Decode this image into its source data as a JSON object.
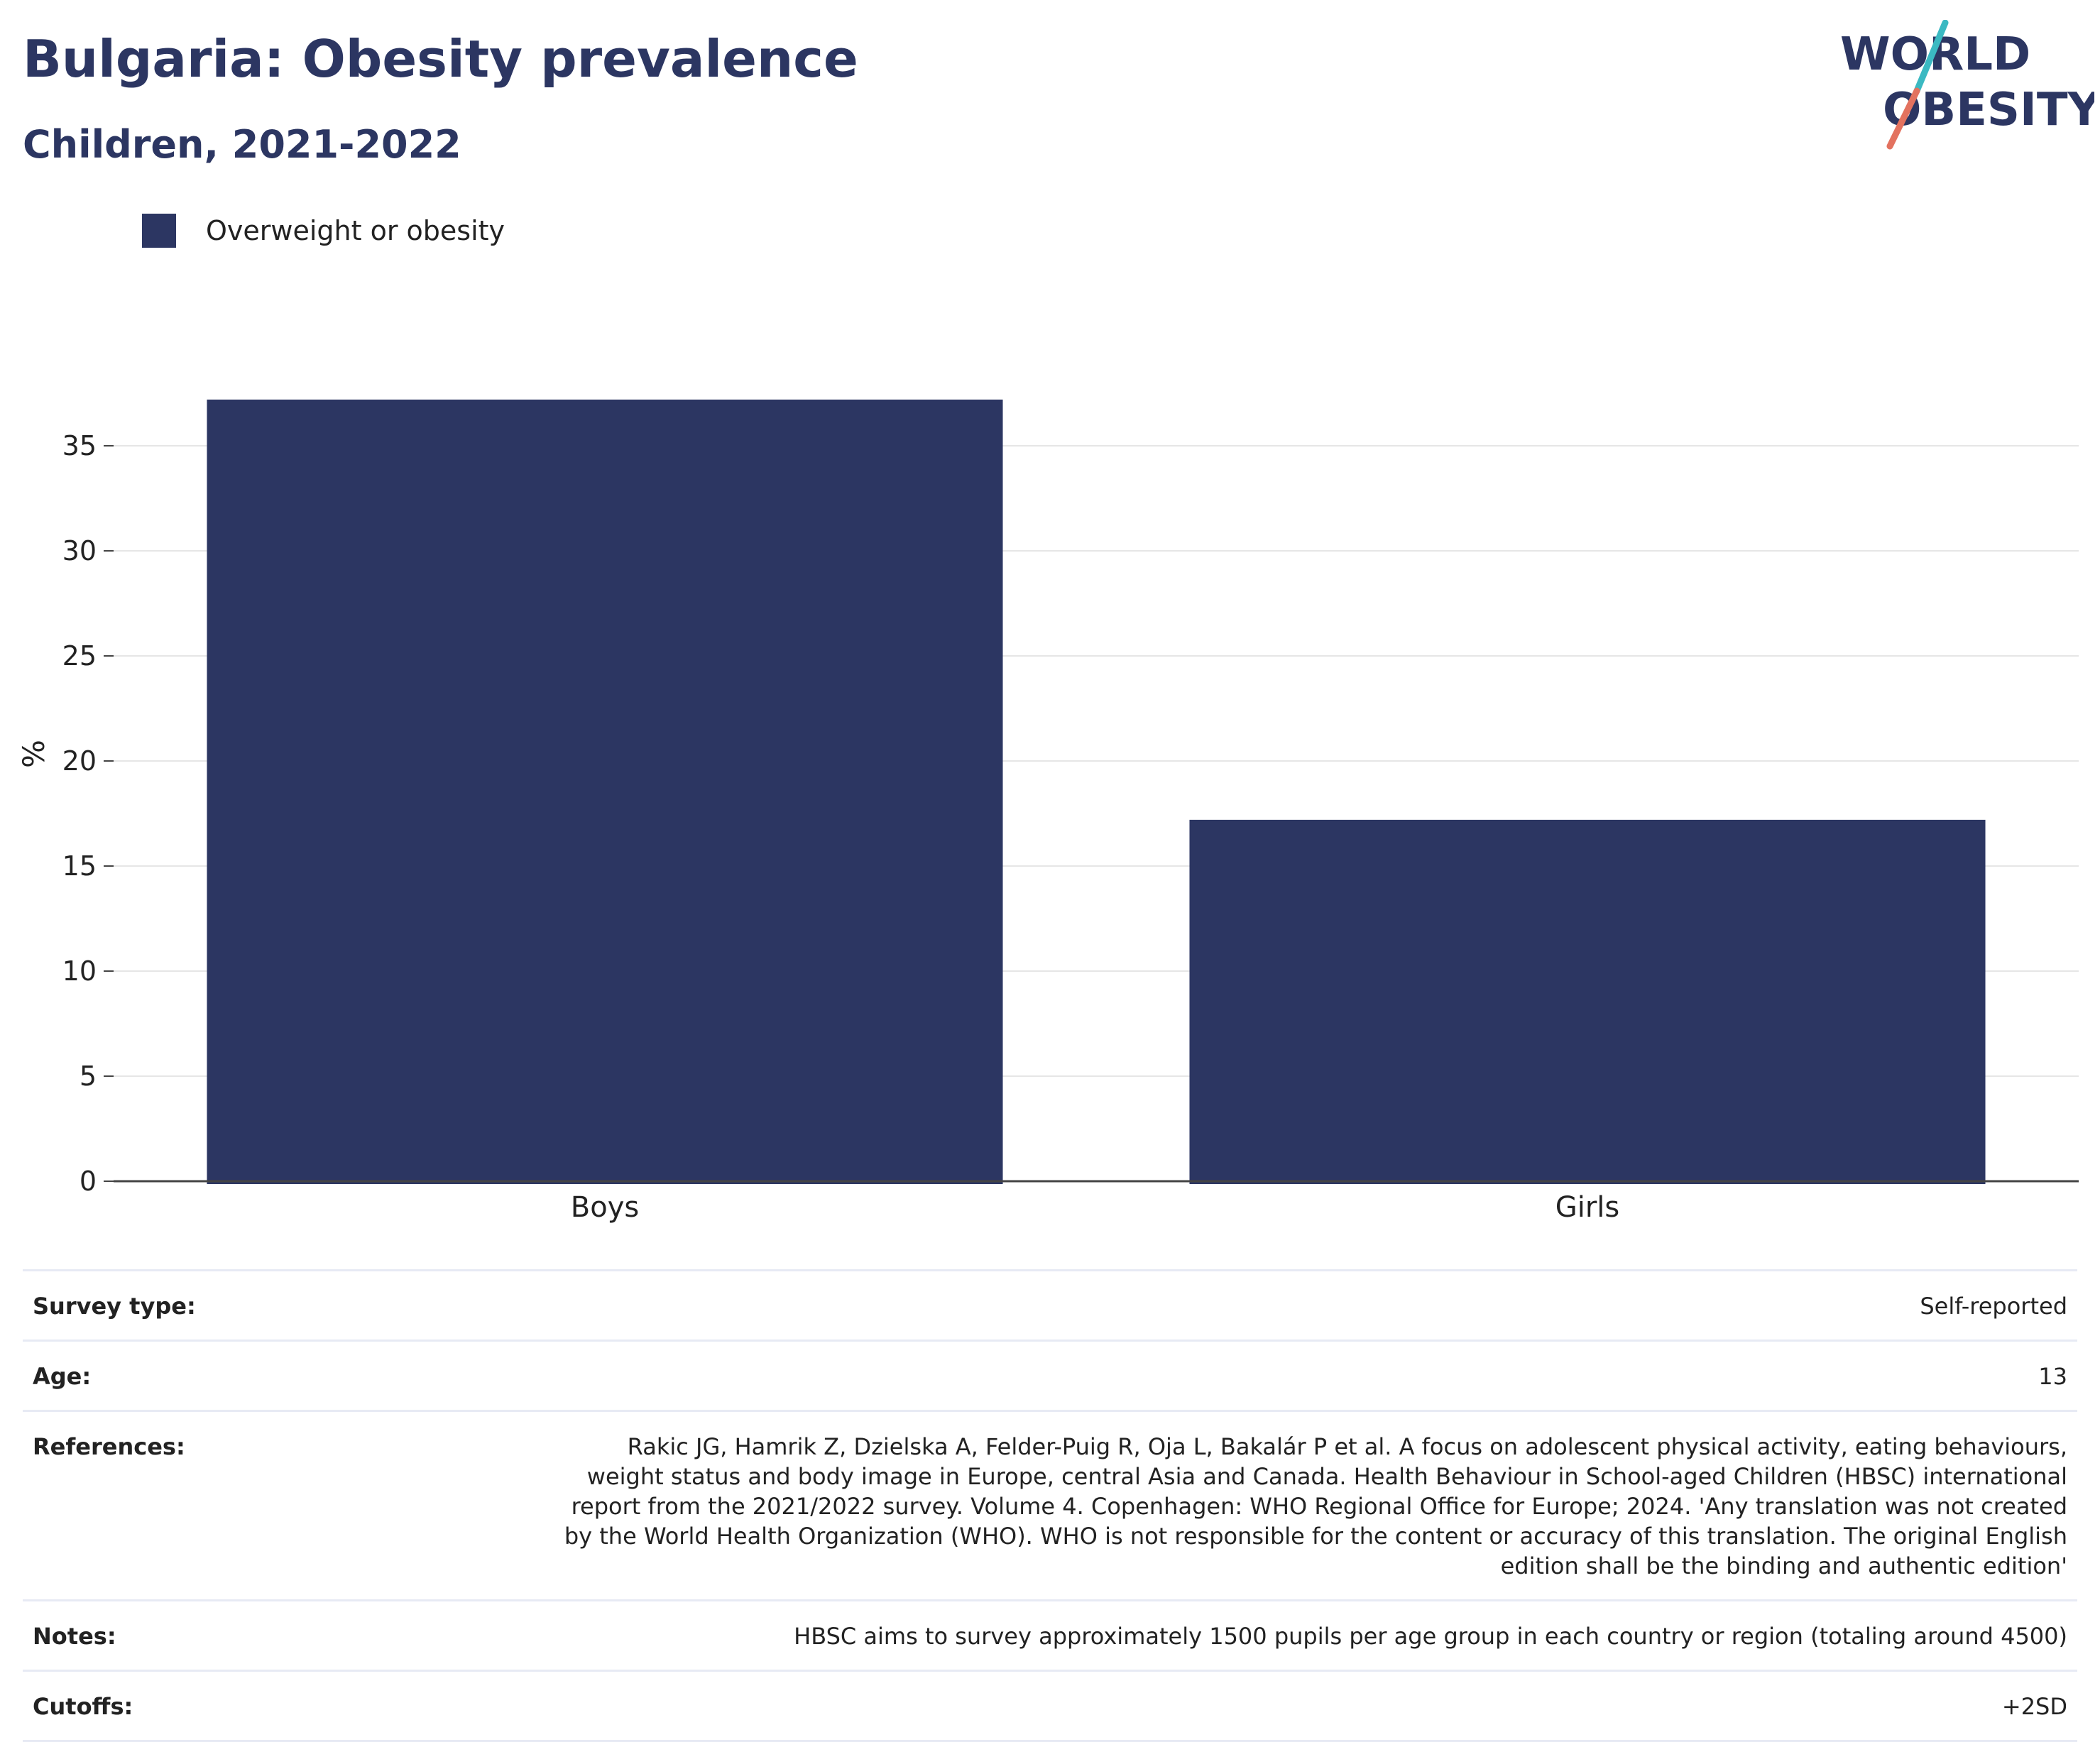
{
  "header": {
    "title": "Bulgaria: Obesity prevalence",
    "subtitle": "Children, 2021-2022"
  },
  "logo": {
    "line1": "WORLD",
    "line2": "OBESITY",
    "text_color": "#2c3662",
    "slash_top_color": "#3bb9c2",
    "slash_bottom_color": "#e3725f"
  },
  "chart_data": {
    "type": "bar",
    "categories": [
      "Boys",
      "Girls"
    ],
    "series": [
      {
        "name": "Overweight or obesity",
        "values": [
          37.2,
          17.2
        ],
        "color": "#2c3662"
      }
    ],
    "xlabel": "",
    "ylabel": "%",
    "ylim": [
      0,
      40
    ],
    "yticks": [
      0,
      5,
      10,
      15,
      20,
      25,
      30,
      35
    ],
    "grid": true,
    "legend_position": "top-left"
  },
  "info": {
    "rows": [
      {
        "label": "Survey type:",
        "value": "Self-reported"
      },
      {
        "label": "Age:",
        "value": "13"
      },
      {
        "label": "References:",
        "value": "Rakic JG, Hamrik Z, Dzielska A, Felder-Puig R, Oja L, Bakalár P et al. A focus on adolescent physical activity, eating behaviours, weight status and body image in Europe, central Asia and Canada. Health Behaviour in School-aged Children (HBSC) international report from the 2021/2022 survey. Volume 4. Copenhagen: WHO Regional Office for Europe; 2024. 'Any translation was not created by the World Health Organization (WHO). WHO is not responsible for the content or accuracy of this translation. The original English edition shall be the binding and authentic edition'"
      },
      {
        "label": "Notes:",
        "value": "HBSC aims to survey approximately 1500 pupils per age group in each country or region (totaling around 4500)"
      },
      {
        "label": "Cutoffs:",
        "value": "+2SD"
      }
    ]
  }
}
